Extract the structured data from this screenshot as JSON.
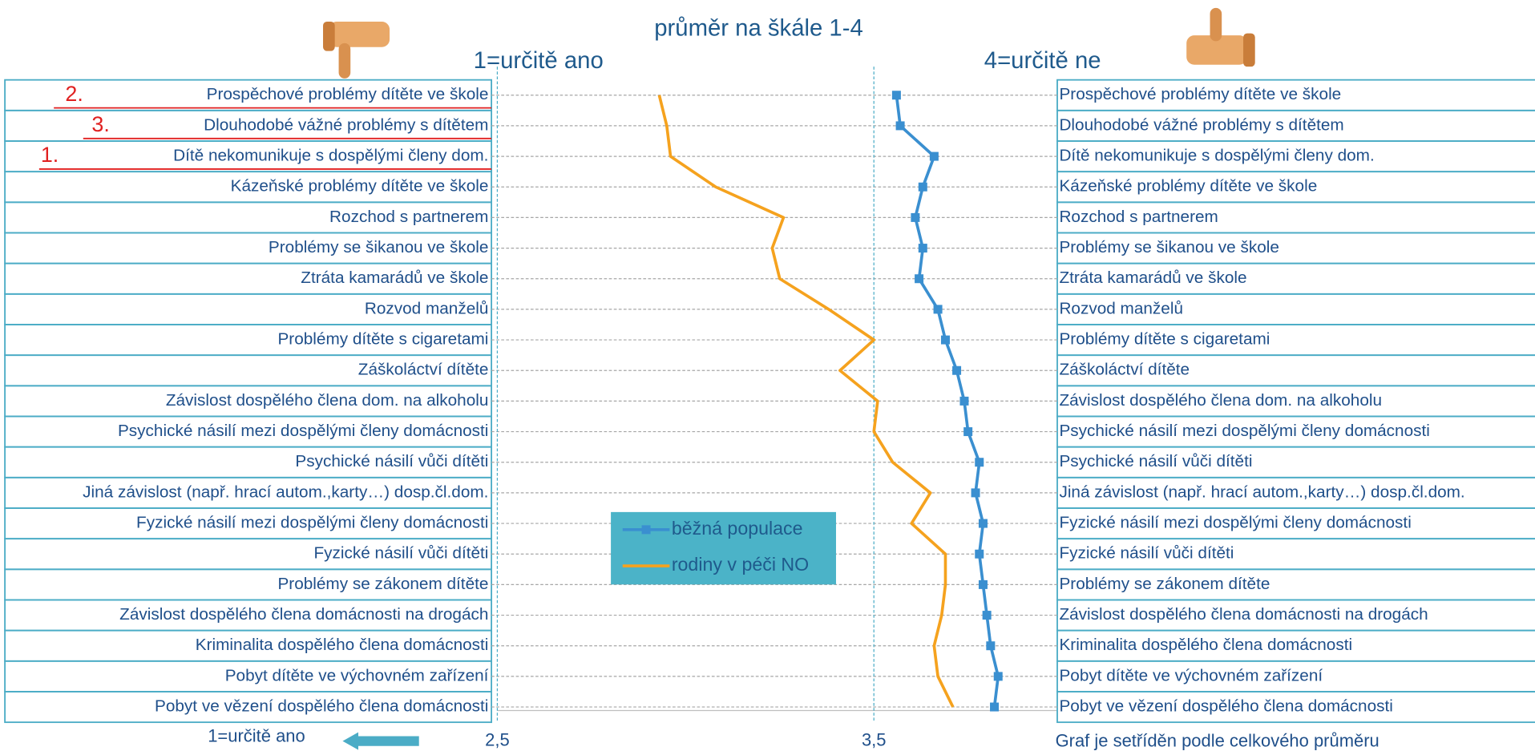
{
  "chart_data": {
    "type": "line",
    "title": "průměr na škále 1-4",
    "left_scale_label": "1=určitě ano",
    "right_scale_label": "4=určitě ne",
    "bottom_left_label": "1=určitě ano",
    "note": "Graf je setříděn  podle celkového průměru",
    "rank_labels": [
      "2.",
      "3.",
      "1."
    ],
    "categories": [
      "Prospěchové problémy dítěte ve škole",
      "Dlouhodobé vážné problémy s dítětem",
      "Dítě nekomunikuje s dospělými členy dom.",
      "Kázeňské problémy dítěte ve škole",
      "Rozchod s partnerem",
      "Problémy se šikanou ve škole",
      "Ztráta kamarádů ve škole",
      "Rozvod manželů",
      "Problémy dítěte s cigaretami",
      "Záškoláctví dítěte",
      "Závislost dospělého člena dom. na alkoholu",
      "Psychické násilí mezi dospělými členy domácnosti",
      "Psychické násilí vůči dítěti",
      "Jiná závislost (např. hrací autom.,karty…) dosp.čl.dom.",
      "Fyzické násilí mezi dospělými členy domácnosti",
      "Fyzické násilí vůči dítěti",
      "Problémy se zákonem dítěte",
      "Závislost dospělého člena domácnosti na drogách",
      "Kriminalita dospělého člena domácnosti",
      "Pobyt dítěte ve výchovném zařízení",
      "Pobyt ve vězení dospělého člena domácnosti"
    ],
    "series": [
      {
        "name": "běžná populace",
        "color": "#3a8fd0",
        "marker": "square",
        "values": [
          3.56,
          3.57,
          3.66,
          3.63,
          3.61,
          3.63,
          3.62,
          3.67,
          3.69,
          3.72,
          3.74,
          3.75,
          3.78,
          3.77,
          3.79,
          3.78,
          3.79,
          3.8,
          3.81,
          3.83,
          3.82
        ]
      },
      {
        "name": "rodiny v péči NO",
        "color": "#f5a21e",
        "values": [
          2.93,
          2.95,
          2.96,
          3.08,
          3.26,
          3.23,
          3.25,
          3.38,
          3.5,
          3.41,
          3.51,
          3.5,
          3.55,
          3.65,
          3.6,
          3.69,
          3.69,
          3.68,
          3.66,
          3.67,
          3.71
        ]
      }
    ],
    "xlim": [
      2.5,
      4
    ],
    "xticks": [
      {
        "value": 2.5,
        "label": "2,5"
      },
      {
        "value": 3.5,
        "label": "3,5"
      }
    ],
    "grid": true
  }
}
